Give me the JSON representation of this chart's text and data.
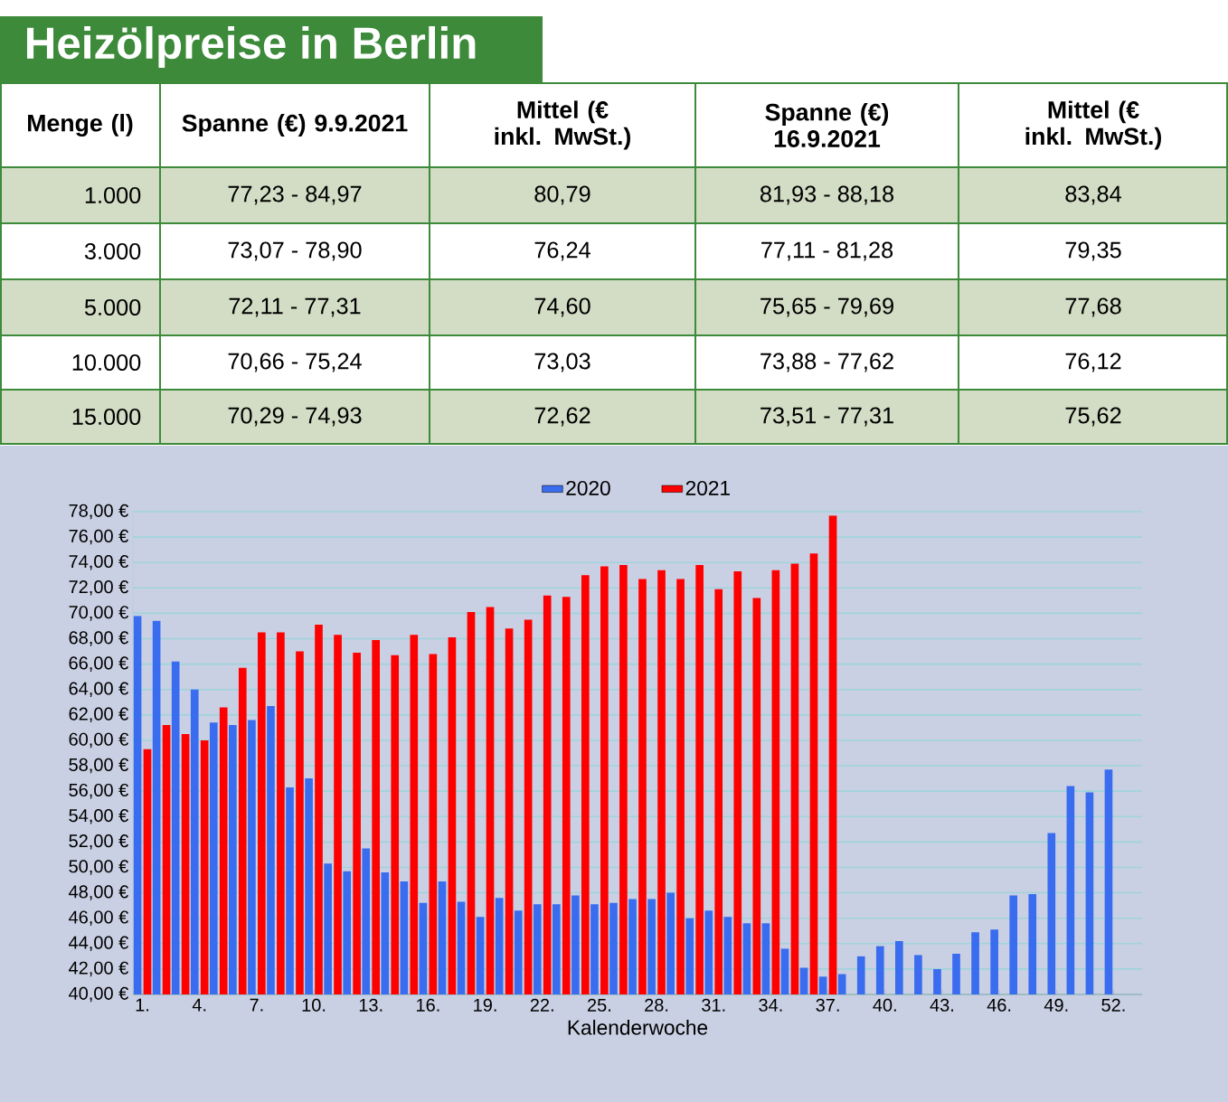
{
  "chart_data": [
    {
      "type": "other",
      "title": "Heizölpreise in Berlin",
      "annotations": [
        "Menge (l)",
        "Spanne (€) 9.9.2021",
        "Mittel (€ inkl. MwSt.)",
        "Spanne (€) 16.9.2021",
        "Mittel (€ inkl. MwSt.)",
        "1.000",
        "77,23 - 84,97",
        "80,79",
        "81,93 - 88,18",
        "83,84",
        "3.000",
        "73,07 - 78,90",
        "76,24",
        "77,11 - 81,28",
        "79,35",
        "5.000",
        "72,11 - 77,31",
        "74,60",
        "75,65 - 79,69",
        "77,68",
        "10.000",
        "70,66 - 75,24",
        "73,03",
        "73,88 - 77,62",
        "76,12",
        "15.000",
        "70,29 - 74,93",
        "72,62",
        "73,51 - 77,31",
        "75,62"
      ]
    },
    {
      "type": "bar",
      "xlabel": "Kalenderwoche",
      "categories": [
        "1.",
        null,
        null,
        "4.",
        null,
        null,
        "7.",
        null,
        null,
        "10.",
        null,
        null,
        "13.",
        null,
        null,
        "16.",
        null,
        null,
        "19.",
        null,
        null,
        "22.",
        null,
        null,
        "25.",
        null,
        null,
        "28.",
        null,
        null,
        "31.",
        null,
        null,
        "34.",
        null,
        null,
        "37.",
        null,
        null,
        "40.",
        null,
        null,
        "43.",
        null,
        null,
        "46.",
        null,
        null,
        "49.",
        null,
        null,
        "52."
      ],
      "series": [
        {
          "name": "2020",
          "color": "#3a6cf0",
          "values": [
            69.8,
            69.4,
            66.2,
            64.0,
            61.4,
            61.2,
            61.6,
            62.7,
            56.3,
            57.0,
            50.3,
            49.7,
            51.5,
            49.6,
            48.9,
            47.2,
            48.9,
            47.3,
            46.1,
            47.6,
            46.6,
            47.1,
            47.1,
            47.8,
            47.1,
            47.2,
            47.5,
            47.5,
            48.0,
            46.0,
            46.6,
            46.1,
            45.6,
            45.6,
            43.6,
            42.1,
            41.4,
            41.6,
            43.0,
            43.8,
            44.2,
            43.1,
            42.0,
            43.2,
            44.9,
            45.1,
            47.8,
            47.9,
            52.7,
            56.4,
            55.9,
            57.7
          ]
        },
        {
          "name": "2021",
          "color": "#ff0000",
          "values": [
            59.3,
            61.2,
            60.5,
            60.0,
            62.6,
            65.7,
            68.5,
            68.5,
            67.0,
            69.1,
            68.3,
            66.9,
            67.9,
            66.7,
            68.3,
            66.8,
            68.1,
            70.1,
            70.5,
            68.8,
            69.5,
            71.4,
            71.3,
            73.0,
            73.7,
            73.8,
            72.7,
            73.4,
            72.7,
            73.8,
            71.9,
            73.3,
            71.2,
            73.4,
            73.9,
            74.7,
            77.7,
            null,
            null,
            null,
            null,
            null,
            null,
            null,
            null,
            null,
            null,
            null,
            null,
            null,
            null,
            null
          ]
        }
      ],
      "ylim": [
        40,
        78
      ],
      "yticks": [
        {
          "value": 40,
          "label": "40,00 €"
        },
        {
          "value": 42,
          "label": "42,00 €"
        },
        {
          "value": 44,
          "label": "44,00 €"
        },
        {
          "value": 46,
          "label": "46,00 €"
        },
        {
          "value": 48,
          "label": "48,00 €"
        },
        {
          "value": 50,
          "label": "50,00 €"
        },
        {
          "value": 52,
          "label": "52,00 €"
        },
        {
          "value": 54,
          "label": "54,00 €"
        },
        {
          "value": 56,
          "label": "56,00 €"
        },
        {
          "value": 58,
          "label": "58,00 €"
        },
        {
          "value": 60,
          "label": "60,00 €"
        },
        {
          "value": 62,
          "label": "62,00 €"
        },
        {
          "value": 64,
          "label": "64,00 €"
        },
        {
          "value": 66,
          "label": "66,00 €"
        },
        {
          "value": 68,
          "label": "68,00 €"
        },
        {
          "value": 70,
          "label": "70,00 €"
        },
        {
          "value": 72,
          "label": "72,00 €"
        },
        {
          "value": 74,
          "label": "74,00 €"
        },
        {
          "value": 76,
          "label": "76,00 €"
        },
        {
          "value": 78,
          "label": "78,00 €"
        }
      ],
      "grid": "y",
      "legend": "top"
    }
  ]
}
